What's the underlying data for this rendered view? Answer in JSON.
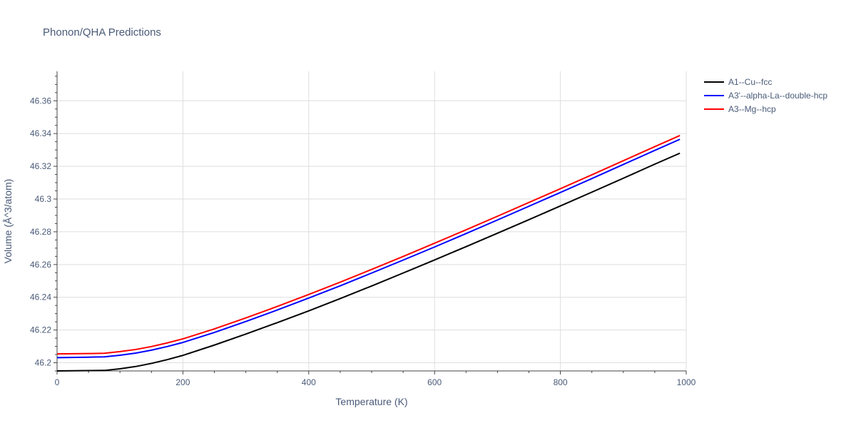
{
  "chart_data": {
    "type": "line",
    "title": "Phonon/QHA Predictions",
    "xlabel": "Temperature (K)",
    "ylabel": "Volume (Å^3/atom)",
    "xlim": [
      0,
      1000
    ],
    "ylim": [
      46.195,
      46.378
    ],
    "xticks": [
      0,
      200,
      400,
      600,
      800,
      1000
    ],
    "xtick_labels": [
      "0",
      "200",
      "400",
      "600",
      "800",
      "1000"
    ],
    "yticks": [
      46.2,
      46.22,
      46.24,
      46.26,
      46.28,
      46.3,
      46.32,
      46.34,
      46.36
    ],
    "ytick_labels": [
      "46.2",
      "46.22",
      "46.24",
      "46.26",
      "46.28",
      "46.3",
      "46.32",
      "46.34",
      "46.36"
    ],
    "grid": true,
    "legend_position": "top-right",
    "x": [
      0,
      50,
      75,
      100,
      125,
      150,
      175,
      200,
      250,
      300,
      350,
      400,
      450,
      500,
      550,
      600,
      650,
      700,
      750,
      800,
      850,
      900,
      950,
      990
    ],
    "series": [
      {
        "name": "A1--Cu--fcc",
        "color": "#000000",
        "values": [
          46.195,
          46.1952,
          46.1953,
          46.1963,
          46.1977,
          46.1996,
          46.2019,
          46.2045,
          46.2108,
          46.2175,
          46.2245,
          46.2317,
          46.2392,
          46.2469,
          46.2548,
          46.2628,
          46.2709,
          46.2791,
          46.2874,
          46.2958,
          46.3042,
          46.3127,
          46.3213,
          46.328
        ]
      },
      {
        "name": "A3'--alpha-La--double-hcp",
        "color": "#0000ff",
        "values": [
          46.2031,
          46.2034,
          46.2036,
          46.2046,
          46.2059,
          46.2077,
          46.2099,
          46.2124,
          46.2185,
          46.2252,
          46.2322,
          46.2395,
          46.247,
          46.2548,
          46.2627,
          46.2707,
          46.2789,
          46.2872,
          46.2956,
          46.304,
          46.3125,
          46.3211,
          46.3297,
          46.3365
        ]
      },
      {
        "name": "A3--Mg--hcp",
        "color": "#ff0000",
        "values": [
          46.2054,
          46.2056,
          46.2058,
          46.2068,
          46.2081,
          46.2099,
          46.2121,
          46.2146,
          46.2207,
          46.2274,
          46.2344,
          46.2417,
          46.2492,
          46.257,
          46.2649,
          46.273,
          46.2812,
          46.2895,
          46.2979,
          46.3063,
          46.3148,
          46.3234,
          46.332,
          46.3388
        ]
      }
    ]
  }
}
